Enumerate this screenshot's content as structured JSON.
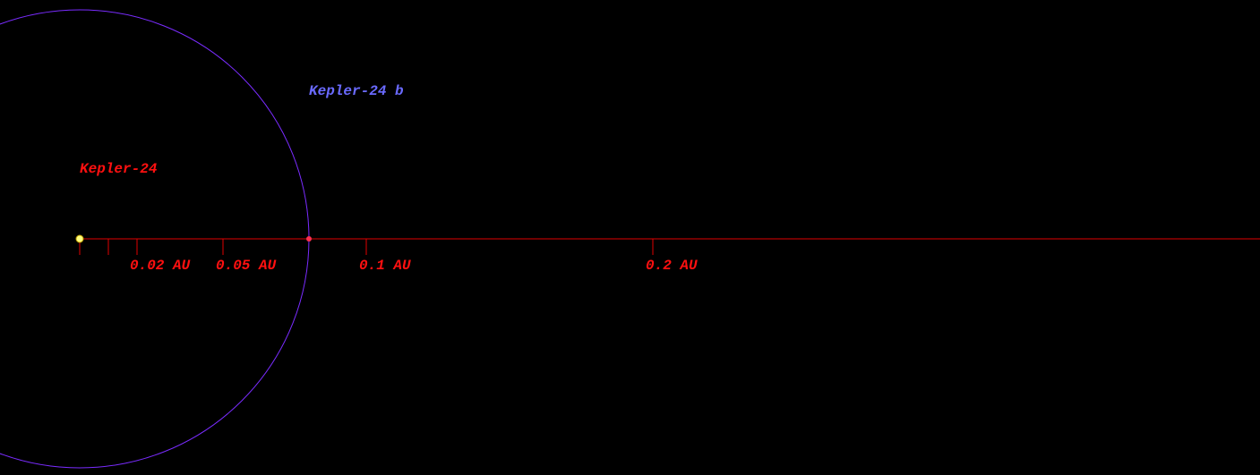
{
  "system": {
    "star": {
      "name": "Kepler-24"
    },
    "planet": {
      "name": "Kepler-24 b",
      "orbit_au": 0.08
    },
    "scale_ticks": [
      0,
      0.01,
      {
        "value": 0.02,
        "label": "0.02 AU"
      },
      {
        "value": 0.05,
        "label": "0.05 AU"
      },
      {
        "value": 0.1,
        "label": "0.1 AU"
      },
      {
        "value": 0.2,
        "label": "0.2 AU"
      }
    ]
  }
}
